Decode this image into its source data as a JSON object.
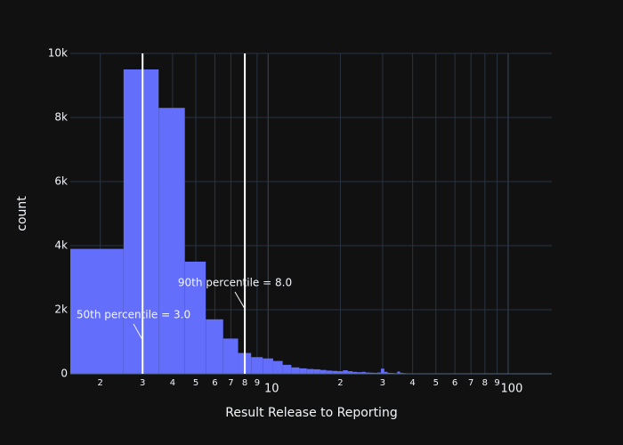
{
  "chart_data": {
    "type": "histogram",
    "ylabel": "count",
    "xlabel": "Result Release to Reporting",
    "color": "#636efa",
    "log_x": true,
    "grid": true,
    "bins": [
      1.5,
      2.5,
      3.5,
      4.5,
      5.5,
      6.5,
      7.5,
      8.5,
      9.5,
      10.5,
      11.5,
      12.5,
      13.5,
      14.5,
      15.5,
      16.5,
      17.5,
      18.5,
      19.5,
      20.5,
      21.5,
      22.5,
      23.5,
      24.5,
      25.5,
      26.5,
      27.5,
      28.5,
      29.5,
      30.5,
      31.5,
      32.5,
      33.5,
      34.5,
      35.5,
      36.5,
      37.5,
      38.5,
      39.5,
      40.5,
      41.5,
      42.5,
      43.5,
      44.5,
      45.5,
      46.5,
      47.5,
      48.5,
      49.5,
      50.5,
      51.5,
      52.5,
      53.5,
      54.5,
      55.5,
      56.5,
      57.5,
      58.5,
      59.5,
      60.5,
      61.5,
      62.5,
      63.5,
      64.5,
      65.5,
      66.5,
      67.5,
      68.5,
      69.5,
      70.5,
      71.5,
      72.5,
      73.5,
      74.5,
      75.5,
      76.5,
      77.5,
      78.5,
      79.5,
      80.5,
      81.5,
      82.5,
      83.5,
      84.5,
      85.5,
      86.5,
      87.5,
      88.5,
      89.5,
      90.5,
      91.5,
      92.5,
      93.5,
      94.5,
      95.5,
      96.5,
      97.5,
      98.5,
      99.5,
      100.5,
      101.5,
      102.5,
      103.5,
      104.5,
      105.5,
      106.5,
      107.5,
      108.5,
      109.5,
      110.5,
      111.5,
      112.5,
      113.5,
      114.5,
      115.5,
      116.5,
      117.5,
      118.5,
      119.5,
      120.5,
      121.5,
      122.5,
      123.5,
      124.5,
      125.5,
      126.5,
      127.5,
      128.5,
      129.5,
      130.5,
      131.5,
      132.5,
      133.5,
      134.5,
      135.5,
      136.5,
      137.5,
      138.5,
      139.5,
      140.5,
      141.5,
      142.5,
      143.5,
      144.5,
      145.5,
      146.5,
      147.5,
      148.5,
      149.5,
      150.5
    ],
    "values": [
      3900,
      9500,
      8300,
      3500,
      1700,
      1100,
      650,
      520,
      480,
      400,
      280,
      200,
      170,
      150,
      140,
      120,
      100,
      90,
      80,
      110,
      80,
      60,
      50,
      60,
      40,
      35,
      30,
      40,
      160,
      60,
      30,
      25,
      20,
      70,
      30,
      20,
      15,
      12,
      10,
      8,
      8,
      8,
      8,
      8,
      8,
      8,
      8,
      8,
      8,
      8,
      8,
      8,
      8,
      8,
      8,
      8,
      8,
      8,
      8,
      5,
      5,
      5,
      5,
      5,
      5,
      5,
      5,
      5,
      5,
      5,
      5,
      5,
      5,
      5,
      5,
      5,
      5,
      5,
      5,
      5,
      5,
      5,
      5,
      5,
      5,
      5,
      5,
      5,
      5,
      5,
      5,
      5,
      5,
      5,
      5,
      5,
      5,
      5,
      5,
      3,
      3,
      3,
      3,
      3,
      3,
      3,
      3,
      3,
      3,
      3,
      3,
      3,
      3,
      3,
      3,
      3,
      3,
      3,
      3,
      3,
      3,
      3,
      3,
      3,
      3,
      3,
      3,
      3,
      3,
      3,
      3,
      3,
      3,
      3,
      3,
      3,
      3,
      3,
      3,
      3,
      3,
      3,
      3,
      3,
      3,
      3,
      3,
      3,
      3
    ],
    "xlim": [
      1.5,
      152
    ],
    "xticks": [
      2,
      3,
      4,
      5,
      6,
      7,
      8,
      9,
      10,
      {
        "value": 20,
        "label": "2"
      },
      {
        "value": 30,
        "label": "3"
      },
      {
        "value": 40,
        "label": "4"
      },
      {
        "value": 50,
        "label": "5"
      },
      {
        "value": 60,
        "label": "6"
      },
      {
        "value": 70,
        "label": "7"
      },
      {
        "value": 80,
        "label": "8"
      },
      {
        "value": 90,
        "label": "9"
      },
      100
    ],
    "ylim": [
      0,
      10000
    ],
    "yticks": [
      {
        "value": 0,
        "label": "0"
      },
      {
        "value": 2000,
        "label": "2k"
      },
      {
        "value": 4000,
        "label": "4k"
      },
      {
        "value": 6000,
        "label": "6k"
      },
      {
        "value": 8000,
        "label": "8k"
      },
      {
        "value": 10000,
        "label": "10k"
      }
    ],
    "percentile_lines": [
      {
        "x": 3.0,
        "label": "50th percentile = 3.0"
      },
      {
        "x": 8.0,
        "label": "90th percentile = 8.0"
      }
    ]
  }
}
